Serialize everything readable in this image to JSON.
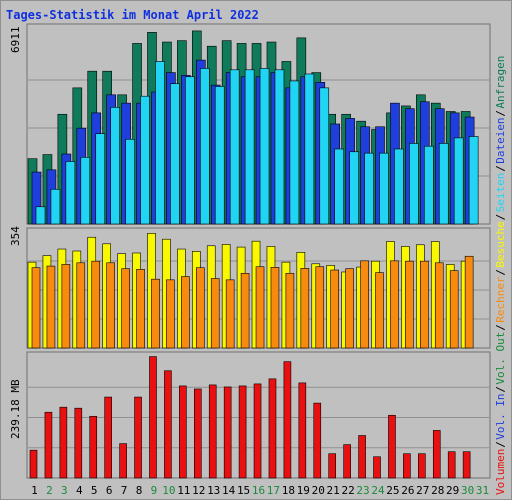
{
  "title": "Tages-Statistik im Monat April 2022",
  "colors": {
    "anfragen": "#0f7b5a",
    "dateien": "#1f3fdc",
    "seiten": "#22d4f4",
    "besuche": "#f8f800",
    "rechner": "#f88a10",
    "volumen": "#e81010",
    "weekend_label": "#1a8a3a",
    "weekday_label": "#000000",
    "grid": "#909090",
    "panel": "#c0c0c0"
  },
  "side_labels": [
    {
      "text": "Anfragen",
      "color": "#0f7b5a"
    },
    {
      "text": "Dateien",
      "color": "#1f3fdc"
    },
    {
      "text": "Seiten",
      "color": "#22d4f4"
    },
    {
      "text": "Besuche",
      "color": "#f8f800"
    },
    {
      "text": "Rechner",
      "color": "#f88a10"
    },
    {
      "text": "Vol. Out",
      "color": "#1a8a3a"
    },
    {
      "text": "Vol. In",
      "color": "#1f3fdc"
    },
    {
      "text": "Volumen",
      "color": "#e81010"
    }
  ],
  "chart_data": [
    {
      "type": "bar",
      "panel": "hits",
      "y_tick_label": "6911",
      "ylim": [
        0,
        6911
      ],
      "categories": [
        "1",
        "2",
        "3",
        "4",
        "5",
        "6",
        "7",
        "8",
        "9",
        "10",
        "11",
        "12",
        "13",
        "14",
        "15",
        "16",
        "17",
        "18",
        "19",
        "20",
        "21",
        "22",
        "23",
        "24",
        "25",
        "26",
        "27",
        "28",
        "29",
        "30",
        "31"
      ],
      "weekend_days": [
        2,
        3,
        9,
        10,
        16,
        17,
        23,
        24,
        30,
        31
      ],
      "series": [
        {
          "name": "Anfragen",
          "values": [
            2350,
            2500,
            3950,
            4900,
            5500,
            5500,
            4650,
            6500,
            6900,
            6550,
            6600,
            6950,
            6400,
            6600,
            6500,
            6500,
            6550,
            5850,
            6700,
            5450,
            3950,
            3950,
            3700,
            3400,
            4000,
            4250,
            4650,
            4350,
            4050,
            4050,
            0
          ]
        },
        {
          "name": "Dateien",
          "values": [
            1870,
            1950,
            2520,
            3450,
            4000,
            4650,
            4350,
            4350,
            4750,
            5450,
            5350,
            5900,
            5000,
            5450,
            5300,
            5300,
            5450,
            4900,
            5300,
            5100,
            3600,
            3800,
            3500,
            3500,
            4350,
            4150,
            4400,
            4150,
            4000,
            3850,
            0
          ]
        },
        {
          "name": "Seiten",
          "values": [
            620,
            1250,
            2250,
            2400,
            3250,
            4200,
            3050,
            4600,
            5850,
            5050,
            5300,
            5600,
            4950,
            5550,
            5550,
            5600,
            5550,
            5150,
            5400,
            4900,
            2700,
            2600,
            2550,
            2550,
            2700,
            2900,
            2800,
            2900,
            3100,
            3150,
            0
          ]
        }
      ]
    },
    {
      "type": "bar",
      "panel": "visits",
      "y_tick_label": "354",
      "ylim": [
        0,
        354
      ],
      "categories": [
        "1",
        "2",
        "3",
        "4",
        "5",
        "6",
        "7",
        "8",
        "9",
        "10",
        "11",
        "12",
        "13",
        "14",
        "15",
        "16",
        "17",
        "18",
        "19",
        "20",
        "21",
        "22",
        "23",
        "24",
        "25",
        "26",
        "27",
        "28",
        "29",
        "30",
        "31"
      ],
      "series": [
        {
          "name": "Besuche",
          "values": [
            262,
            282,
            302,
            296,
            338,
            318,
            288,
            290,
            350,
            332,
            302,
            295,
            312,
            316,
            308,
            326,
            310,
            262,
            292,
            257,
            252,
            232,
            247,
            265,
            325,
            310,
            315,
            325,
            255,
            265,
            0
          ]
        },
        {
          "name": "Rechner",
          "values": [
            245,
            250,
            255,
            260,
            265,
            260,
            242,
            240,
            210,
            208,
            218,
            245,
            212,
            208,
            228,
            248,
            246,
            228,
            243,
            248,
            238,
            242,
            266,
            230,
            266,
            265,
            265,
            260,
            236,
            280,
            0
          ]
        }
      ]
    },
    {
      "type": "bar",
      "panel": "volume",
      "y_tick_label": "239.18 MB",
      "ylim": [
        0,
        239.18
      ],
      "categories": [
        "1",
        "2",
        "3",
        "4",
        "5",
        "6",
        "7",
        "8",
        "9",
        "10",
        "11",
        "12",
        "13",
        "14",
        "15",
        "16",
        "17",
        "18",
        "19",
        "20",
        "21",
        "22",
        "23",
        "24",
        "25",
        "26",
        "27",
        "28",
        "29",
        "30",
        "31"
      ],
      "series": [
        {
          "name": "Volumen",
          "values": [
            55,
            130,
            140,
            138,
            122,
            160,
            68,
            160,
            240,
            212,
            182,
            176,
            184,
            180,
            182,
            186,
            196,
            230,
            188,
            148,
            48,
            66,
            84,
            42,
            124,
            48,
            48,
            94,
            52,
            52,
            0
          ]
        }
      ]
    }
  ]
}
